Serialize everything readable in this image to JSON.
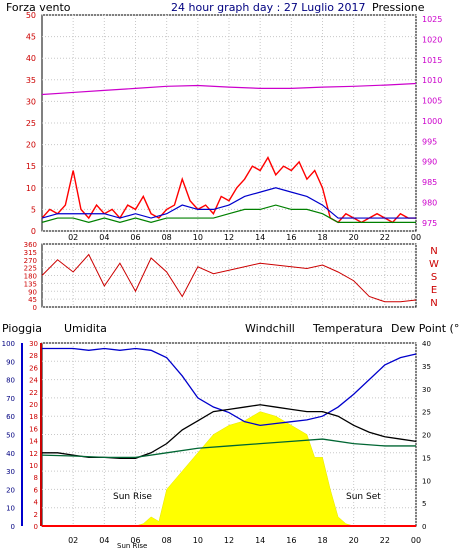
{
  "page_title": "24 hour graph day : 27 Luglio 2017",
  "colors": {
    "wind": "#ff0000",
    "wind_dir": "#cc0000",
    "gust": "#0000cc",
    "avg": "#008000",
    "pressure": "#cc00cc",
    "humidity": "#0000cc",
    "temperature": "#000000",
    "dewpoint": "#006633",
    "windchill": "#ff9900",
    "rain": "#ff0000",
    "sun": "#ffff00",
    "axis": "#000000",
    "grid": "#c8c8c8"
  },
  "x_tick_labels": [
    "02",
    "04",
    "06",
    "08",
    "10",
    "12",
    "14",
    "16",
    "18",
    "20",
    "22",
    "00"
  ],
  "chart_data": [
    {
      "type": "line",
      "name": "wind-pressure",
      "left_title": "Forza vento",
      "right_title": "Pressione",
      "left_axis_ticks": [
        "0",
        "5",
        "10",
        "15",
        "20",
        "25",
        "30",
        "35",
        "40",
        "45",
        "50"
      ],
      "right_axis_ticks": [
        "975",
        "980",
        "985",
        "990",
        "995",
        "1000",
        "1005",
        "1010",
        "1015",
        "1020",
        "1025"
      ],
      "ylim_left": [
        0,
        50
      ],
      "ylim_right": [
        973,
        1026
      ],
      "x_range_hours": [
        0,
        24
      ],
      "series": [
        {
          "key": "wind",
          "x": [
            0,
            0.5,
            1,
            1.5,
            2,
            2.5,
            3,
            3.5,
            4,
            4.5,
            5,
            5.5,
            6,
            6.5,
            7,
            7.5,
            8,
            8.5,
            9,
            9.5,
            10,
            10.5,
            11,
            11.5,
            12,
            12.5,
            13,
            13.5,
            14,
            14.5,
            15,
            15.5,
            16,
            16.5,
            17,
            17.5,
            18,
            18.5,
            19,
            19.5,
            20,
            20.5,
            21,
            21.5,
            22,
            22.5,
            23,
            23.5,
            24
          ],
          "y": [
            3,
            5,
            4,
            6,
            14,
            5,
            3,
            6,
            4,
            5,
            3,
            6,
            5,
            8,
            4,
            3,
            5,
            6,
            12,
            7,
            5,
            6,
            4,
            8,
            7,
            10,
            12,
            15,
            14,
            17,
            13,
            15,
            14,
            16,
            12,
            14,
            10,
            3,
            2,
            4,
            3,
            2,
            3,
            4,
            3,
            2,
            4,
            3,
            3
          ]
        },
        {
          "key": "gust",
          "x": [
            0,
            1,
            2,
            3,
            4,
            5,
            6,
            7,
            8,
            9,
            10,
            11,
            12,
            13,
            14,
            15,
            16,
            17,
            18,
            19,
            20,
            21,
            22,
            23,
            24
          ],
          "y": [
            3,
            4,
            4,
            4,
            4,
            3,
            4,
            3,
            4,
            6,
            5,
            5,
            6,
            8,
            9,
            10,
            9,
            8,
            6,
            3,
            3,
            3,
            3,
            3,
            3
          ]
        },
        {
          "key": "avg",
          "x": [
            0,
            1,
            2,
            3,
            4,
            5,
            6,
            7,
            8,
            9,
            10,
            11,
            12,
            13,
            14,
            15,
            16,
            17,
            18,
            19,
            20,
            21,
            22,
            23,
            24
          ],
          "y": [
            2,
            3,
            3,
            2,
            3,
            2,
            3,
            2,
            3,
            3,
            3,
            3,
            4,
            5,
            5,
            6,
            5,
            5,
            4,
            2,
            2,
            2,
            2,
            2,
            2
          ]
        },
        {
          "key": "pressure",
          "x": [
            0,
            2,
            4,
            6,
            8,
            10,
            12,
            14,
            16,
            18,
            20,
            22,
            24
          ],
          "y": [
            1006.5,
            1007,
            1007.5,
            1008,
            1008.5,
            1008.7,
            1008.3,
            1008,
            1008,
            1008.3,
            1008.5,
            1008.8,
            1009.2
          ]
        }
      ]
    },
    {
      "type": "line",
      "name": "wind-direction",
      "left_axis_ticks": [
        "0",
        "45",
        "90",
        "135",
        "180",
        "225",
        "270",
        "315",
        "360"
      ],
      "right_axis_labels": [
        "N",
        "W",
        "S",
        "E",
        "N"
      ],
      "ylim": [
        0,
        360
      ],
      "series": [
        {
          "key": "wind_dir",
          "x": [
            0,
            1,
            2,
            3,
            4,
            5,
            6,
            7,
            8,
            9,
            10,
            11,
            12,
            13,
            14,
            15,
            16,
            17,
            18,
            19,
            20,
            21,
            22,
            23,
            24
          ],
          "y": [
            180,
            270,
            200,
            300,
            120,
            250,
            90,
            280,
            200,
            60,
            230,
            190,
            210,
            230,
            250,
            240,
            230,
            220,
            240,
            200,
            150,
            60,
            30,
            30,
            40
          ]
        }
      ]
    },
    {
      "type": "area",
      "name": "humidity-temperature",
      "top_labels": [
        "Pioggia",
        "Umidita",
        "Windchill",
        "Temperatura",
        "Dew Point (°C"
      ],
      "umidita_axis_ticks": [
        "0",
        "10",
        "20",
        "30",
        "40",
        "50",
        "60",
        "70",
        "80",
        "90",
        "100"
      ],
      "pioggia_axis_ticks": [
        "0",
        "2",
        "4",
        "6",
        "8",
        "10",
        "12",
        "14",
        "16",
        "18",
        "20",
        "22",
        "24",
        "26",
        "28",
        "30"
      ],
      "temp_axis_ticks": [
        "0",
        "5",
        "10",
        "15",
        "20",
        "25",
        "30",
        "35",
        "40"
      ],
      "ylim_humidity": [
        0,
        100
      ],
      "ylim_temp": [
        0,
        40
      ],
      "annotations": [
        "Sun Rise",
        "Sun Set",
        "Sun Rise"
      ],
      "series": [
        {
          "key": "humidity",
          "x": [
            0,
            1,
            2,
            3,
            4,
            5,
            6,
            7,
            8,
            9,
            10,
            11,
            12,
            13,
            14,
            15,
            16,
            17,
            18,
            19,
            20,
            21,
            22,
            23,
            24
          ],
          "y": [
            97,
            97,
            97,
            96,
            97,
            96,
            97,
            96,
            92,
            82,
            70,
            65,
            62,
            57,
            55,
            56,
            57,
            58,
            60,
            65,
            72,
            80,
            88,
            92,
            94
          ]
        },
        {
          "key": "temperature",
          "x": [
            0,
            1,
            2,
            3,
            4,
            5,
            6,
            7,
            8,
            9,
            10,
            11,
            12,
            13,
            14,
            15,
            16,
            17,
            18,
            19,
            20,
            21,
            22,
            23,
            24
          ],
          "y": [
            16,
            16,
            15.5,
            15,
            15,
            14.8,
            14.8,
            16,
            18,
            21,
            23,
            25,
            25.5,
            26,
            26.5,
            26,
            25.5,
            25,
            25,
            24,
            22,
            20.5,
            19.5,
            19,
            18.5
          ]
        },
        {
          "key": "dewpoint",
          "x": [
            0,
            2,
            4,
            6,
            8,
            10,
            12,
            14,
            16,
            18,
            20,
            22,
            24
          ],
          "y": [
            15.5,
            15.3,
            15,
            15,
            16,
            17,
            17.5,
            18,
            18.5,
            19,
            18,
            17.5,
            17.5
          ]
        },
        {
          "key": "sun",
          "x": [
            0,
            6,
            6.5,
            7,
            7.5,
            8,
            9,
            10,
            11,
            12,
            13,
            14,
            15,
            16,
            17,
            17.5,
            18,
            18.5,
            19,
            19.5,
            20,
            24
          ],
          "y": [
            0,
            0,
            0.5,
            2,
            1,
            8,
            12,
            16,
            20,
            22,
            23,
            25,
            24,
            22,
            20,
            15,
            15,
            8,
            2,
            0.5,
            0,
            0
          ]
        },
        {
          "key": "rain",
          "x": [
            0,
            24
          ],
          "y": [
            0,
            0
          ]
        }
      ]
    }
  ]
}
